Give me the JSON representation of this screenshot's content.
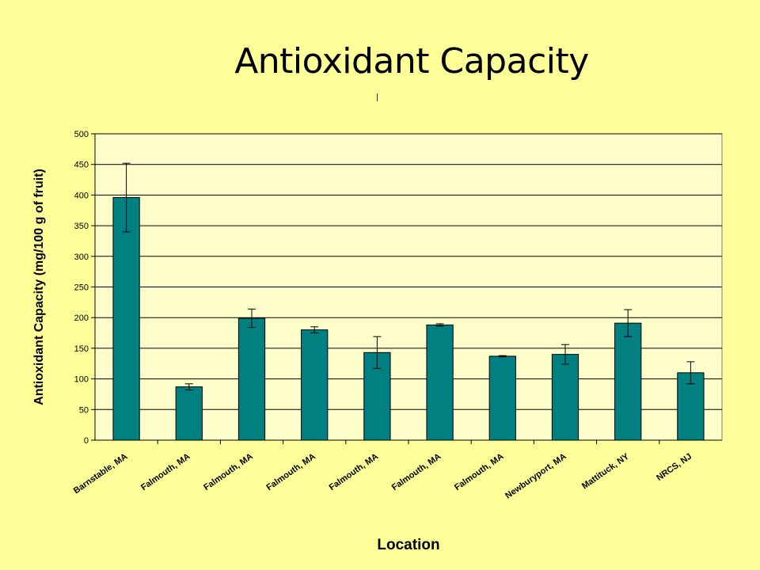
{
  "slide": {
    "title": "Antioxidant Capacity"
  },
  "chart_data": {
    "type": "bar",
    "title": "",
    "xlabel": "Location",
    "ylabel": "Antioxidant Capacity (mg/100 g of fruit)",
    "ylim": [
      0,
      500
    ],
    "yticks": [
      0,
      50,
      100,
      150,
      200,
      250,
      300,
      350,
      400,
      450,
      500
    ],
    "grid": true,
    "legend": "none",
    "bar_color": "#008080",
    "plot_background": "#ffffcc",
    "categories": [
      "Barnstable, MA",
      "Falmouth, MA",
      "Falmouth, MA",
      "Falmouth, MA",
      "Falmouth, MA",
      "Falmouth, MA",
      "Falmouth, MA",
      "Newburyport, MA",
      "Mattituck, NY",
      "NRCS, NJ"
    ],
    "values": [
      396,
      87,
      199,
      180,
      143,
      188,
      137,
      140,
      191,
      110
    ],
    "error": [
      56,
      5,
      15,
      5,
      26,
      2,
      1,
      16,
      22,
      18
    ]
  }
}
